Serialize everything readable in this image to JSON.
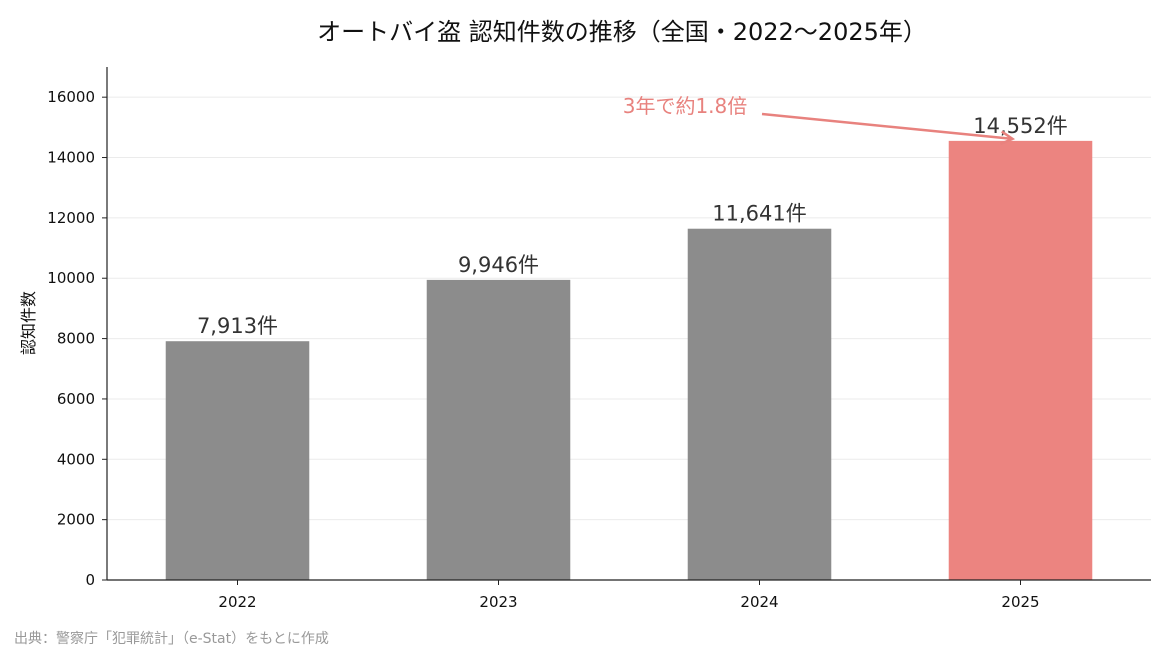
{
  "chart_data": {
    "type": "bar",
    "title": "オートバイ盗 認知件数の推移（全国・2022〜2025年）",
    "xlabel": "",
    "ylabel": "認知件数",
    "categories": [
      "2022",
      "2023",
      "2024",
      "2025"
    ],
    "values": [
      7913,
      9946,
      11641,
      14552
    ],
    "value_labels": [
      "7,913件",
      "9,946件",
      "11,641件",
      "14,552件"
    ],
    "ylim": [
      0,
      17000
    ],
    "yticks": [
      0,
      2000,
      4000,
      6000,
      8000,
      10000,
      12000,
      14000,
      16000
    ],
    "grid": true,
    "colors": {
      "default": "#8c8c8c",
      "highlight": "#ec8480",
      "annotation": "#e8827e",
      "grid": "#ebebeb",
      "axis": "#222222"
    },
    "highlight_category": "2025",
    "annotation": {
      "text": "3年で約1.8倍",
      "target_category": "2025"
    },
    "source": "出典：警察庁「犯罪統計」（e-Stat）をもとに作成"
  }
}
